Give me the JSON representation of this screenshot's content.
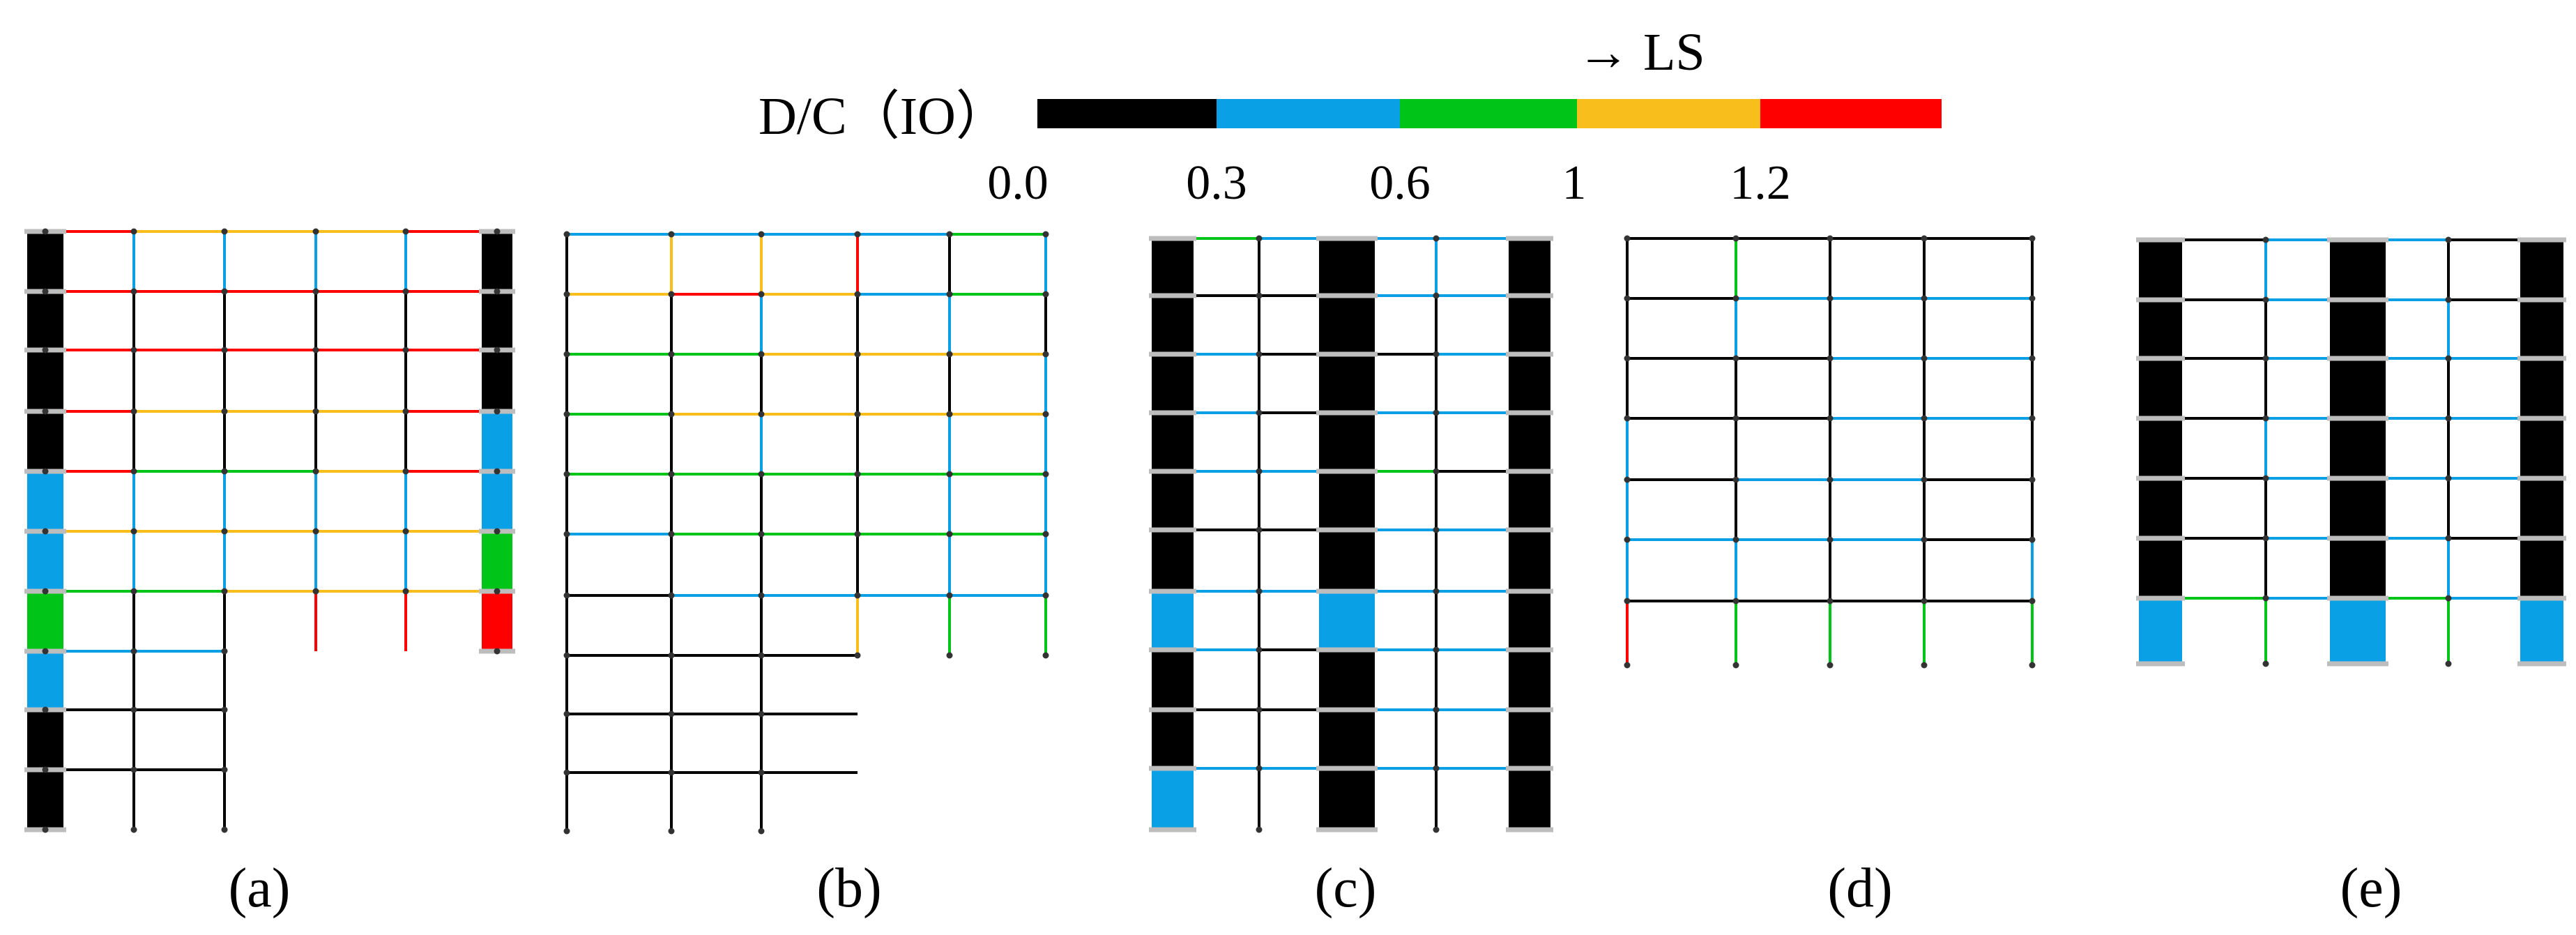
{
  "legend": {
    "prefix": "D/C（IO）",
    "arrow_label": "→ LS",
    "ticks": [
      "0.0",
      "0.3",
      "0.6",
      "1",
      "1.2"
    ],
    "colors": [
      "#000000",
      "#0aa0e6",
      "#00c418",
      "#f8be1c",
      "#ff0000"
    ]
  },
  "panels": [
    {
      "label": "(a)",
      "letter": "a"
    },
    {
      "label": "(b)",
      "letter": "b"
    },
    {
      "label": "(c)",
      "letter": "c"
    },
    {
      "label": "(d)",
      "letter": "d"
    },
    {
      "label": "(e)",
      "letter": "e"
    }
  ]
}
